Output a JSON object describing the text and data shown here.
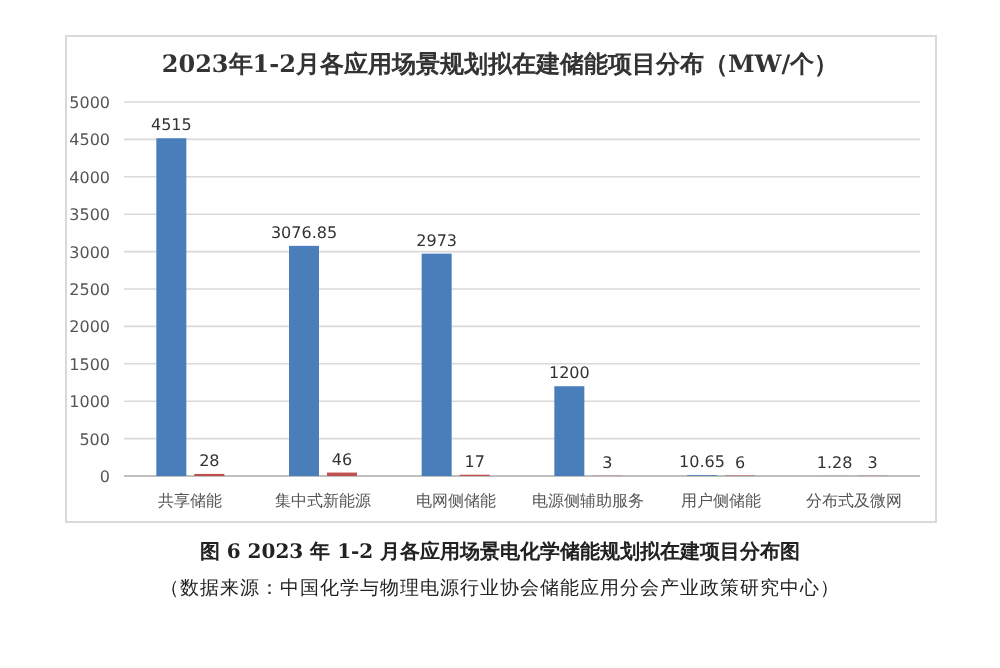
{
  "chart_data": {
    "type": "bar",
    "title": "2023年1-2月各应用场景规划拟在建储能项目分布（MW/个）",
    "categories": [
      "共享储能",
      "集中式新能源",
      "电网侧储能",
      "电源侧辅助服务",
      "用户侧储能",
      "分布式及微网"
    ],
    "series": [
      {
        "color": "#4a7ebb",
        "values": [
          4515,
          3076.85,
          2973,
          1200,
          10.65,
          1.28
        ]
      },
      {
        "color": "#c0504d",
        "values": [
          28,
          46,
          17,
          3,
          6,
          3
        ]
      }
    ],
    "ylim": [
      0,
      5000
    ],
    "yticks": [
      0,
      500,
      1000,
      1500,
      2000,
      2500,
      3000,
      3500,
      4000,
      4500,
      5000
    ],
    "grid": "y",
    "data_labels": true,
    "annotations": [
      "图 6 2023 年 1-2 月各应用场景电化学储能规划拟在建项目分布图",
      "（数据来源：中国化学与物理电源行业协会储能应用分会产业政策研究中心）"
    ]
  }
}
